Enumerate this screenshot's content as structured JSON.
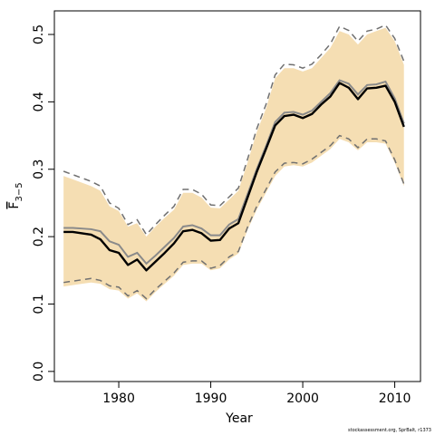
{
  "chart_data": {
    "type": "area",
    "xlabel": "Year",
    "ylabel": "F",
    "ylabel_subscript": "3−5",
    "xlim": [
      1973,
      2012.8
    ],
    "ylim": [
      -0.015,
      0.535
    ],
    "xticks": [
      1980,
      1990,
      2000,
      2010
    ],
    "yticks": [
      0.0,
      0.1,
      0.2,
      0.3,
      0.4,
      0.5
    ],
    "ytick_labels": [
      "0.0",
      "0.1",
      "0.2",
      "0.3",
      "0.4",
      "0.5"
    ],
    "grid": false,
    "legend": "none",
    "colors": {
      "band": "#f5deb3",
      "estimate": "#000000",
      "estimate_shadow": "#8a8a8a",
      "bounds": "#707070",
      "axis": "#000000"
    },
    "x": [
      1974,
      1975,
      1976,
      1977,
      1978,
      1979,
      1980,
      1981,
      1982,
      1983,
      1984,
      1985,
      1986,
      1987,
      1988,
      1989,
      1990,
      1991,
      1992,
      1993,
      1994,
      1995,
      1996,
      1997,
      1998,
      1999,
      2000,
      2001,
      2002,
      2003,
      2004,
      2005,
      2006,
      2007,
      2008,
      2009,
      2010,
      2011
    ],
    "series": [
      {
        "role": "shaded_band",
        "upper": [
          0.29,
          0.285,
          0.28,
          0.275,
          0.268,
          0.245,
          0.238,
          0.215,
          0.22,
          0.2,
          0.215,
          0.228,
          0.24,
          0.265,
          0.265,
          0.258,
          0.243,
          0.242,
          0.255,
          0.268,
          0.31,
          0.355,
          0.39,
          0.435,
          0.45,
          0.45,
          0.445,
          0.45,
          0.465,
          0.48,
          0.505,
          0.5,
          0.485,
          0.5,
          0.505,
          0.51,
          0.49,
          0.455
        ],
        "lower": [
          0.126,
          0.128,
          0.13,
          0.132,
          0.13,
          0.122,
          0.12,
          0.108,
          0.116,
          0.104,
          0.118,
          0.13,
          0.142,
          0.158,
          0.16,
          0.16,
          0.15,
          0.153,
          0.166,
          0.175,
          0.21,
          0.24,
          0.265,
          0.29,
          0.304,
          0.306,
          0.304,
          0.31,
          0.32,
          0.33,
          0.345,
          0.34,
          0.328,
          0.34,
          0.34,
          0.338,
          0.31,
          0.275
        ]
      },
      {
        "role": "upper_bound",
        "values": [
          0.297,
          0.292,
          0.287,
          0.282,
          0.275,
          0.25,
          0.242,
          0.218,
          0.225,
          0.203,
          0.218,
          0.232,
          0.245,
          0.27,
          0.27,
          0.263,
          0.247,
          0.246,
          0.259,
          0.272,
          0.315,
          0.36,
          0.396,
          0.44,
          0.456,
          0.455,
          0.45,
          0.456,
          0.47,
          0.486,
          0.512,
          0.506,
          0.49,
          0.505,
          0.508,
          0.514,
          0.494,
          0.46
        ]
      },
      {
        "role": "estimate_shadow",
        "values": [
          0.213,
          0.213,
          0.212,
          0.211,
          0.208,
          0.193,
          0.188,
          0.17,
          0.176,
          0.16,
          0.172,
          0.185,
          0.198,
          0.215,
          0.217,
          0.212,
          0.202,
          0.202,
          0.218,
          0.226,
          0.263,
          0.3,
          0.334,
          0.37,
          0.384,
          0.385,
          0.381,
          0.387,
          0.4,
          0.413,
          0.432,
          0.427,
          0.411,
          0.425,
          0.426,
          0.43,
          0.405,
          0.368
        ]
      },
      {
        "role": "estimate",
        "values": [
          0.207,
          0.207,
          0.205,
          0.203,
          0.196,
          0.18,
          0.176,
          0.158,
          0.166,
          0.15,
          0.163,
          0.176,
          0.19,
          0.208,
          0.21,
          0.205,
          0.194,
          0.195,
          0.212,
          0.22,
          0.258,
          0.296,
          0.33,
          0.365,
          0.379,
          0.381,
          0.376,
          0.382,
          0.396,
          0.408,
          0.428,
          0.421,
          0.404,
          0.42,
          0.421,
          0.424,
          0.4,
          0.363
        ]
      },
      {
        "role": "lower_bound",
        "values": [
          0.132,
          0.134,
          0.136,
          0.138,
          0.135,
          0.127,
          0.125,
          0.112,
          0.12,
          0.108,
          0.122,
          0.134,
          0.146,
          0.162,
          0.164,
          0.164,
          0.153,
          0.157,
          0.17,
          0.178,
          0.214,
          0.245,
          0.27,
          0.296,
          0.309,
          0.31,
          0.308,
          0.315,
          0.325,
          0.335,
          0.35,
          0.345,
          0.332,
          0.345,
          0.345,
          0.342,
          0.314,
          0.278
        ]
      }
    ]
  },
  "footer": {
    "credit": "stockassessment.org, SprBalt, r1373"
  }
}
